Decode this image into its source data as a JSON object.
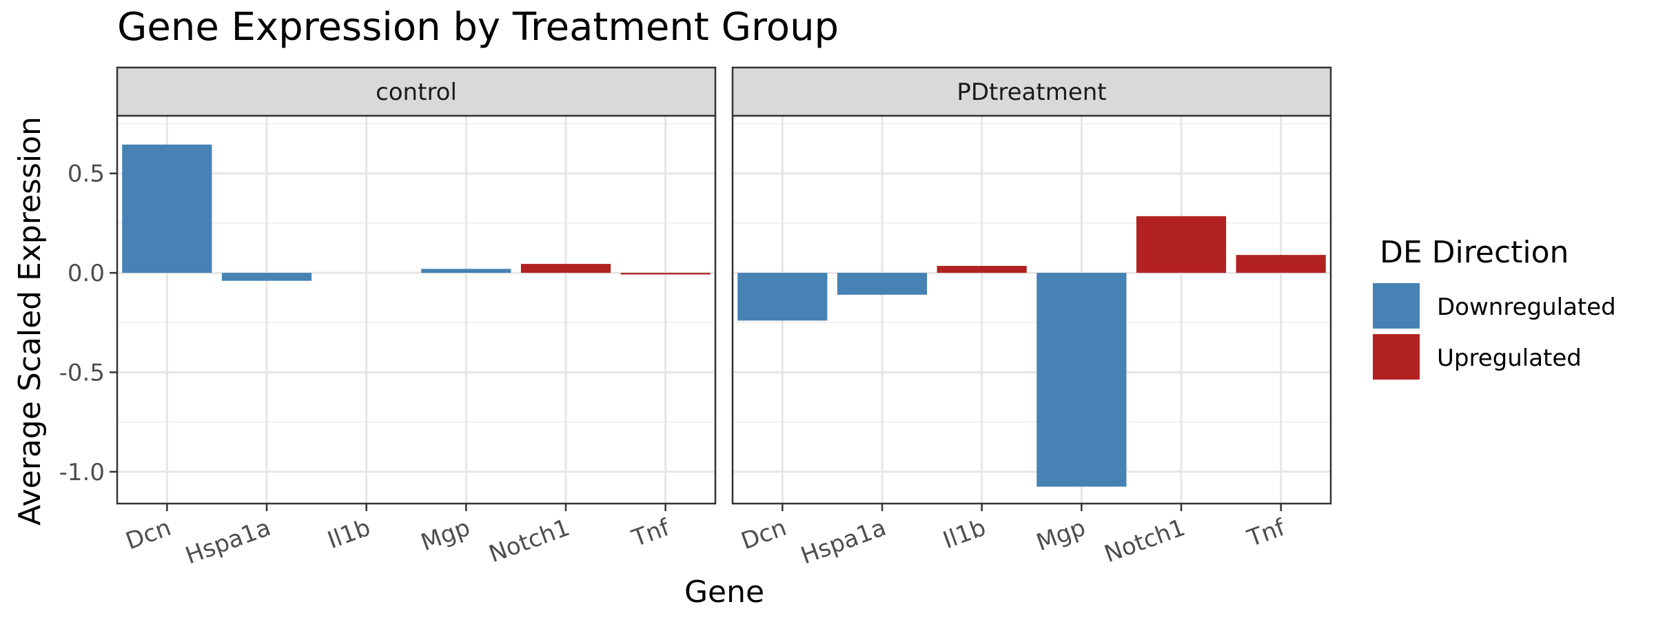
{
  "chart_data": {
    "type": "bar",
    "title": "Gene Expression by Treatment Group",
    "xlabel": "Gene",
    "ylabel": "Average Scaled Expression",
    "ylim": [
      -1.16,
      0.79
    ],
    "yticks": [
      0.5,
      0.0,
      -0.5,
      -1.0
    ],
    "ytick_labels": [
      "0.5",
      "0.0",
      "-0.5",
      "-1.0"
    ],
    "grid": true,
    "categories": [
      "Dcn",
      "Hspa1a",
      "Il1b",
      "Mgp",
      "Notch1",
      "Tnf"
    ],
    "panels": [
      {
        "name": "control",
        "values": [
          0.645,
          -0.04,
          0.0,
          0.02,
          0.045,
          -0.008
        ],
        "directions": [
          "Downregulated",
          "Downregulated",
          "Downregulated",
          "Downregulated",
          "Upregulated",
          "Upregulated"
        ]
      },
      {
        "name": "PDtreatment",
        "values": [
          -0.24,
          -0.11,
          0.035,
          -1.075,
          0.285,
          0.09
        ],
        "directions": [
          "Downregulated",
          "Downregulated",
          "Upregulated",
          "Downregulated",
          "Upregulated",
          "Upregulated"
        ]
      }
    ],
    "legend": {
      "title": "DE Direction",
      "position": "right",
      "entries": [
        {
          "label": "Downregulated",
          "color": "#4682B4"
        },
        {
          "label": "Upregulated",
          "color": "#B22222"
        }
      ]
    }
  }
}
